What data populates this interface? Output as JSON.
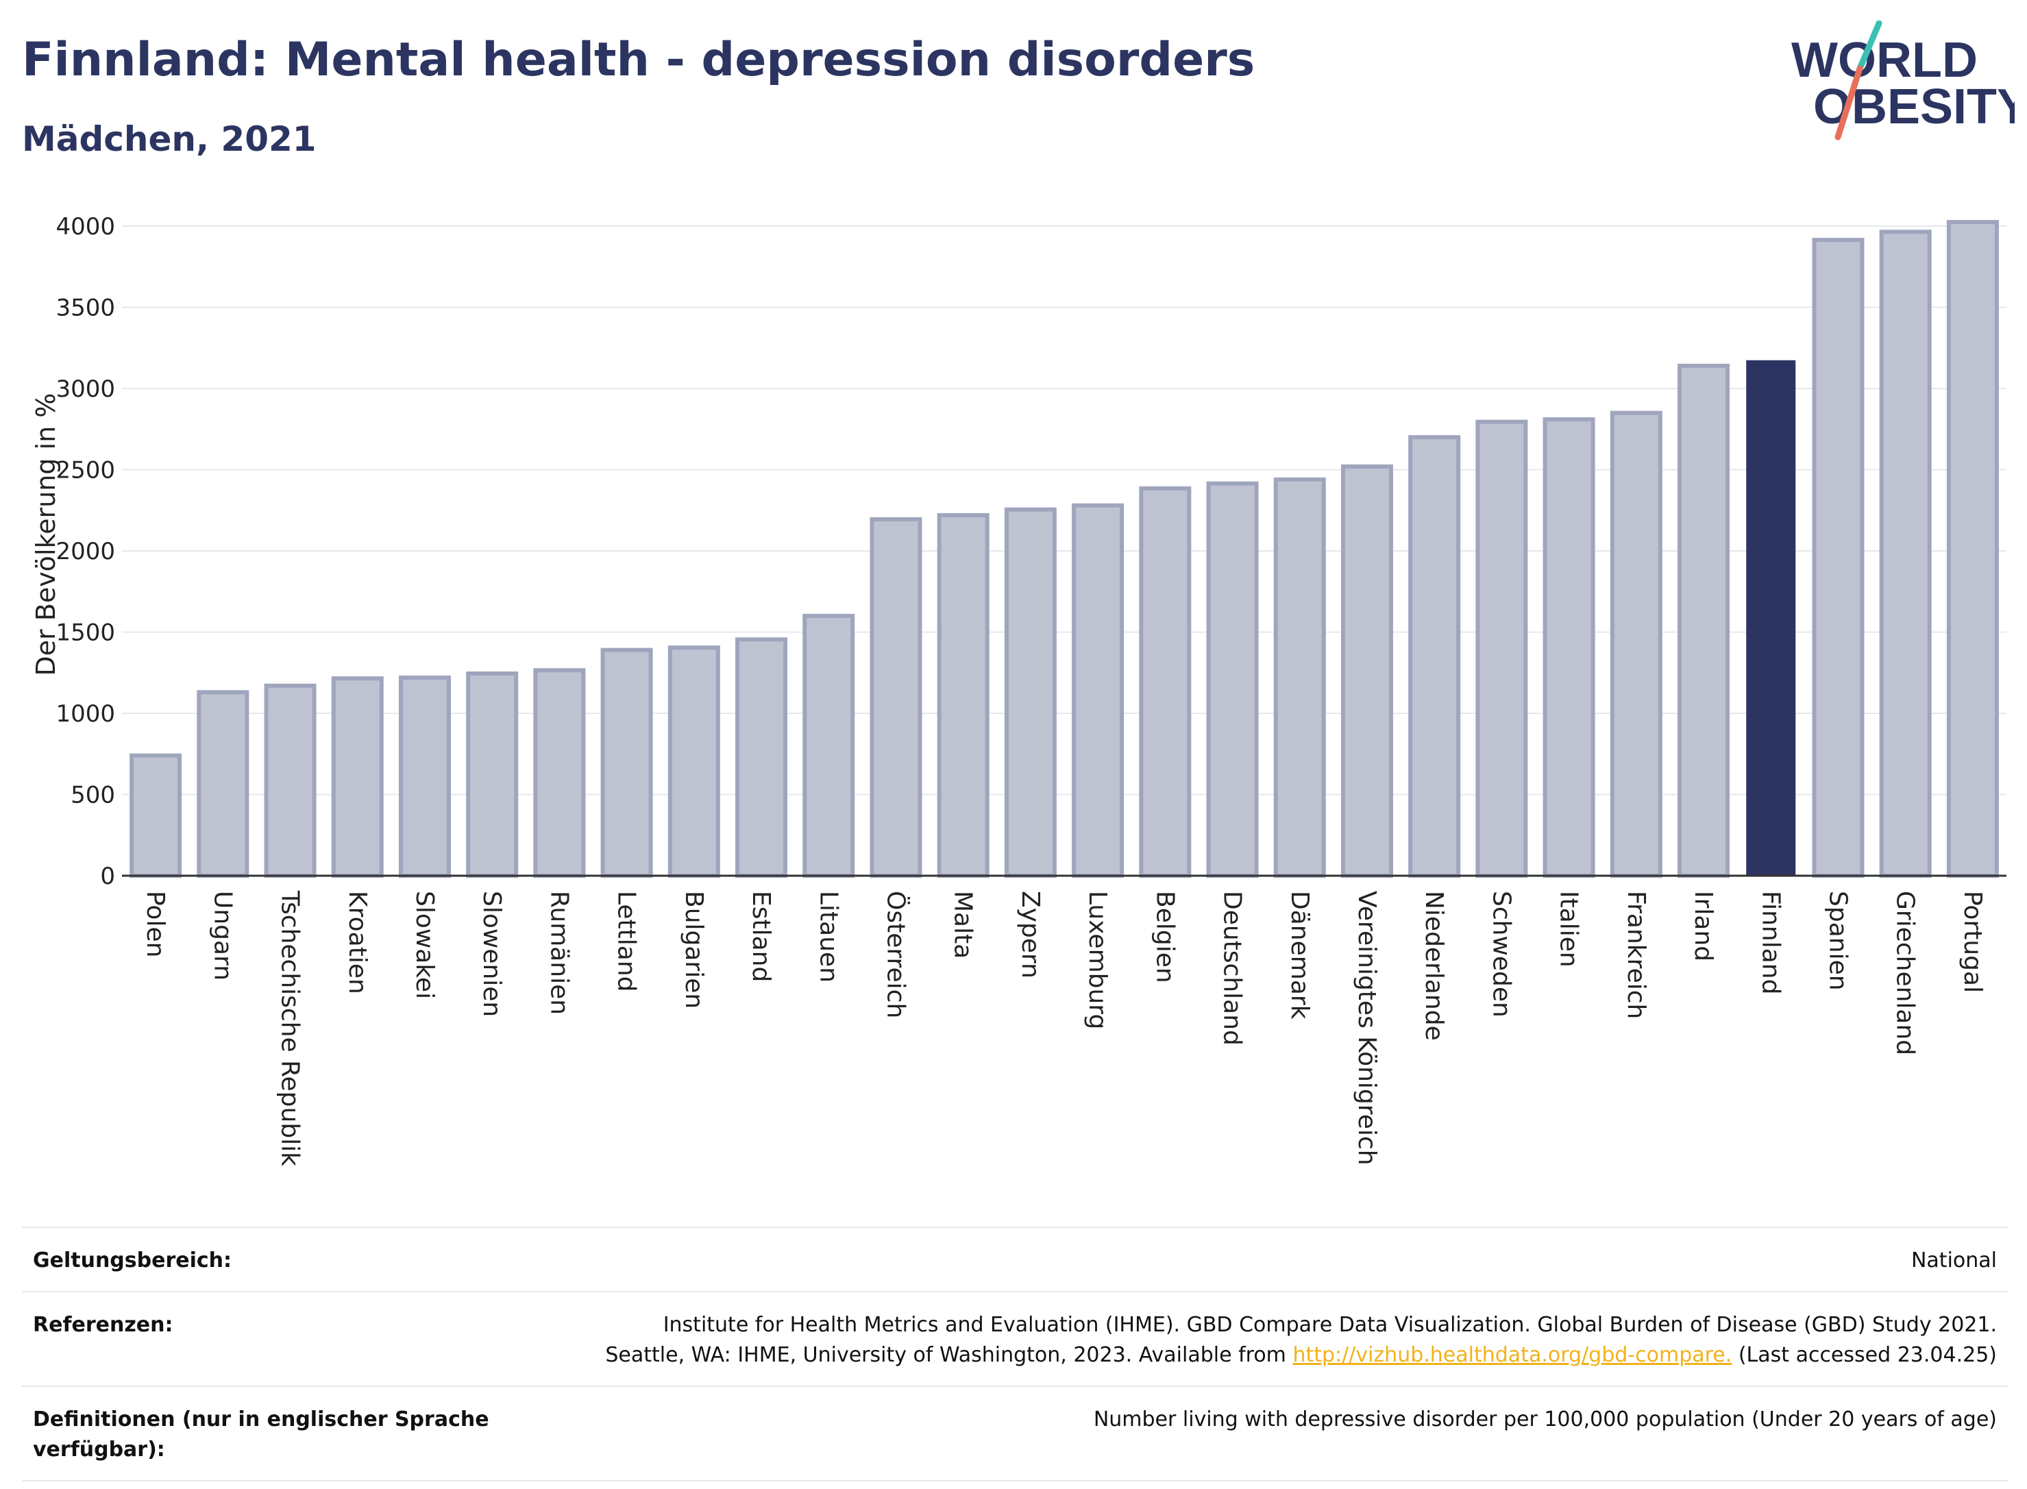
{
  "header": {
    "title": "Finnland: Mental health - depression disorders",
    "subtitle": "Mädchen, 2021"
  },
  "logo": {
    "line1": "WORLD",
    "line2": "OBESITY"
  },
  "colors": {
    "title": "#2c3561",
    "bar": "#bfc3d1",
    "bar_stroke": "#9fa5bc",
    "highlight": "#2c3561",
    "grid": "#e6e8ef",
    "link": "#f2b21b",
    "logo_teal": "#3cc0b4",
    "logo_red": "#e8705a"
  },
  "chart_data": {
    "type": "bar",
    "title": "Finnland: Mental health - depression disorders",
    "subtitle": "Mädchen, 2021",
    "ylabel": "Der Bevölkerung in %",
    "xlabel": "",
    "ylim": [
      0,
      4000
    ],
    "yticks": [
      0,
      500,
      1000,
      1500,
      2000,
      2500,
      3000,
      3500,
      4000
    ],
    "grid": true,
    "highlight": "Finnland",
    "categories": [
      "Polen",
      "Ungarn",
      "Tschechische Republik",
      "Kroatien",
      "Slowakei",
      "Slowenien",
      "Rumänien",
      "Lettland",
      "Bulgarien",
      "Estland",
      "Litauen",
      "Österreich",
      "Malta",
      "Zypern",
      "Luxemburg",
      "Belgien",
      "Deutschland",
      "Dänemark",
      "Vereinigtes Königreich",
      "Niederlande",
      "Schweden",
      "Italien",
      "Frankreich",
      "Irland",
      "Finnland",
      "Spanien",
      "Griechenland",
      "Portugal"
    ],
    "values": [
      740,
      1130,
      1170,
      1215,
      1220,
      1245,
      1265,
      1390,
      1405,
      1455,
      1600,
      2195,
      2220,
      2255,
      2280,
      2385,
      2415,
      2440,
      2520,
      2700,
      2795,
      2810,
      2850,
      3140,
      3170,
      3915,
      3965,
      4025
    ]
  },
  "footer": {
    "scope_label": "Geltungsbereich:",
    "scope_value": "National",
    "refs_label": "Referenzen:",
    "refs_line1": "Institute for Health Metrics and Evaluation (IHME). GBD Compare Data Visualization. Global Burden of Disease (GBD) Study 2021.",
    "refs_line2_prefix": "Seattle, WA: IHME, University of Washington, 2023. Available from ",
    "refs_link": "http://vizhub.healthdata.org/gbd-compare.",
    "refs_line2_suffix": " (Last accessed 23.04.25)",
    "defs_label": "Definitionen (nur in englischer Sprache verfügbar):",
    "defs_value": "Number living with depressive disorder per 100,000 population (Under 20 years of age)"
  }
}
